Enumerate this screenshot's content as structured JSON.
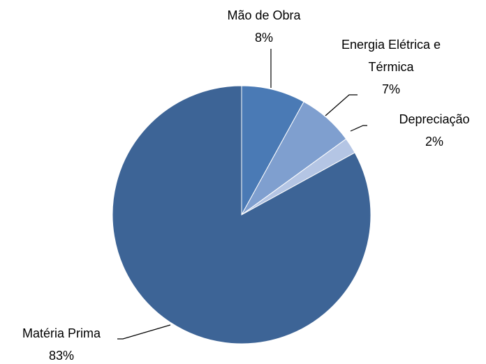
{
  "chart_data": {
    "type": "pie",
    "categories": [
      "Mão de Obra",
      "Energia Elétrica e Térmica",
      "Depreciação",
      "Matéria Prima"
    ],
    "values": [
      8,
      7,
      2,
      83
    ],
    "value_labels": [
      "8%",
      "7%",
      "2%",
      "83%"
    ],
    "colors": [
      "#4a7ab5",
      "#7f9fcf",
      "#b4c5e4",
      "#3d6496"
    ]
  }
}
